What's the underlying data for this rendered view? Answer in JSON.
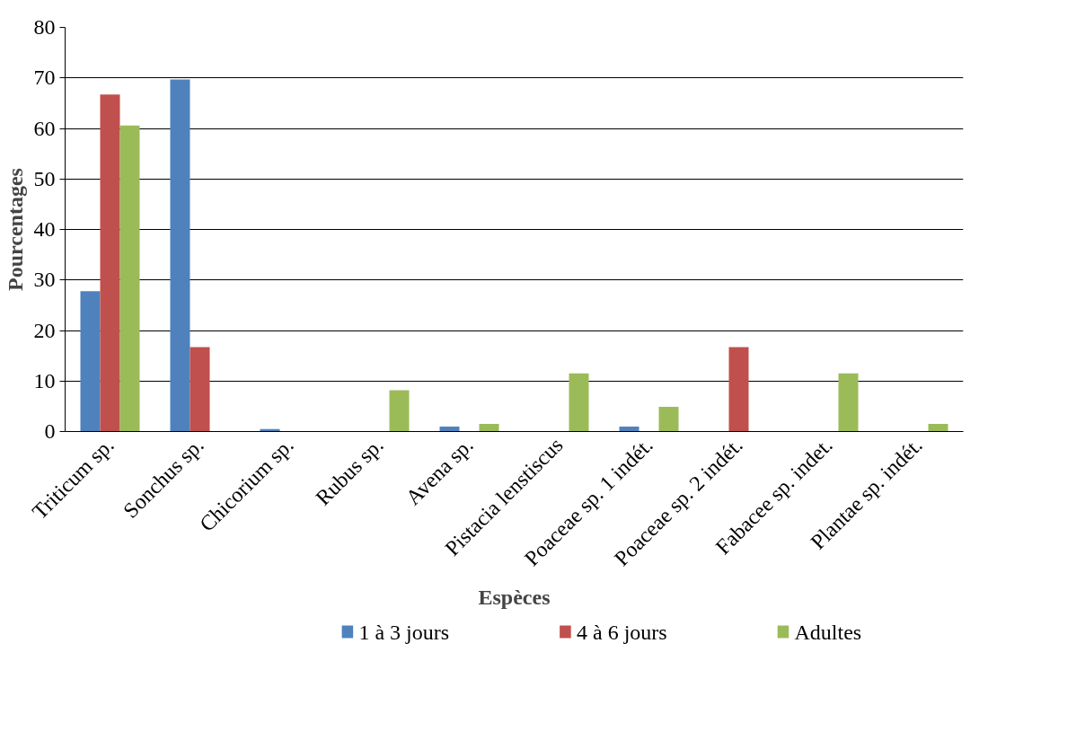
{
  "chart_data": {
    "type": "bar",
    "xlabel": "Espèces",
    "ylabel": "Pourcentages",
    "categories": [
      "Triticum sp.",
      "Sonchus sp.",
      "Chicorium sp.",
      "Rubus sp.",
      "Avena sp.",
      "Pistacia lenstiscus",
      "Poaceae sp. 1 indét.",
      "Poaceae sp. 2 indét.",
      "Fabacee sp. indet.",
      "Plantae sp. indét."
    ],
    "series": [
      {
        "name": "1 à 3 jours",
        "color": "#4f81bd",
        "values": [
          27.8,
          69.7,
          0.5,
          0,
          1.0,
          0,
          1.0,
          0,
          0,
          0
        ]
      },
      {
        "name": "4 à 6 jours",
        "color": "#c0504d",
        "values": [
          66.7,
          16.7,
          0,
          0,
          0,
          0,
          0,
          16.7,
          0,
          0
        ]
      },
      {
        "name": "Adultes",
        "color": "#9bbb59",
        "values": [
          60.6,
          0,
          0,
          8.2,
          1.5,
          11.5,
          4.9,
          0,
          11.5,
          1.5
        ]
      }
    ],
    "ylim": [
      0,
      80
    ],
    "yticks": [
      0,
      10,
      20,
      30,
      40,
      50,
      60,
      70,
      80
    ],
    "grid": "y",
    "legend": "bottom"
  }
}
